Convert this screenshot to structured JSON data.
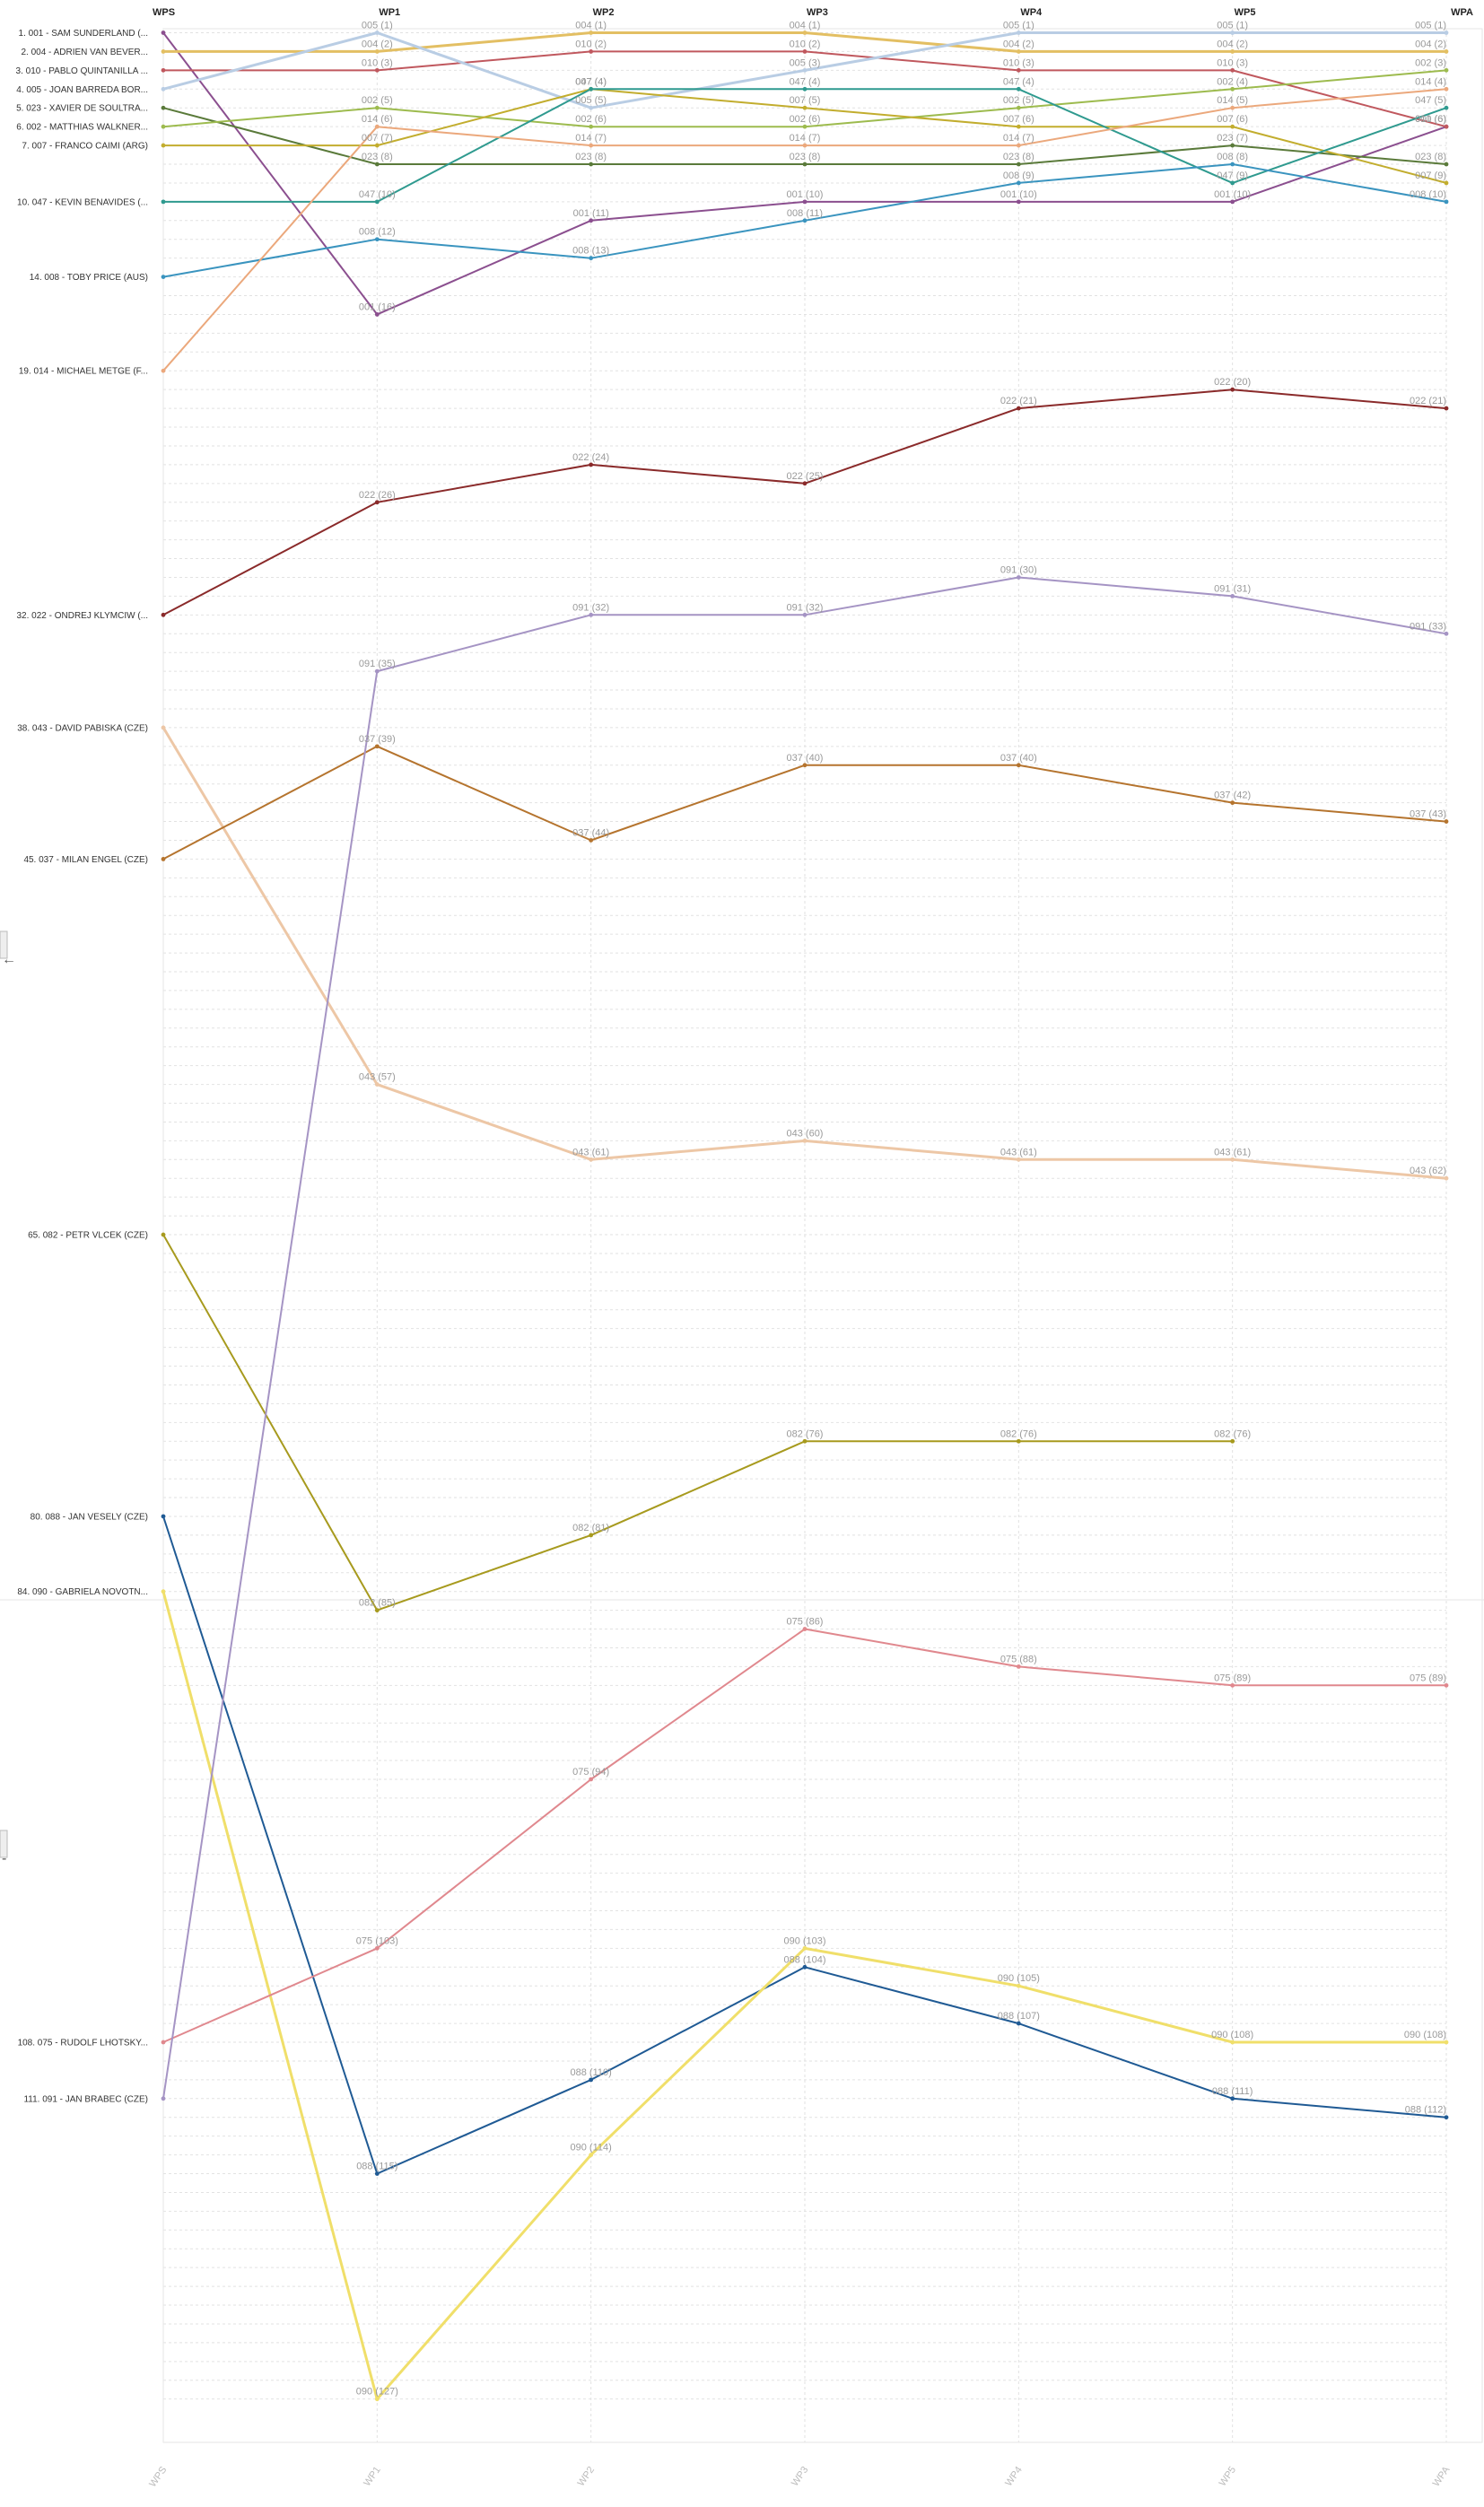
{
  "chart_data": {
    "type": "line",
    "x": [
      "WPS",
      "WP1",
      "WP2",
      "WP3",
      "WP4",
      "WP5",
      "WPA"
    ],
    "y_axis": {
      "reversed": true,
      "min_rank": 0,
      "max_rank": 127,
      "unit": "position"
    },
    "grid": true,
    "legend": "left",
    "series": [
      {
        "name": "1. 001 - SAM SUNDERLAND (...",
        "code": "001",
        "color": "#8b4f8f",
        "width": 2,
        "ranks": [
          1,
          16,
          11,
          10,
          10,
          10,
          6
        ]
      },
      {
        "name": "2. 004 - ADRIEN VAN BEVER...",
        "code": "004",
        "color": "#e3bf63",
        "width": 3,
        "ranks": [
          2,
          2,
          1,
          1,
          2,
          2,
          2
        ]
      },
      {
        "name": "3. 010 - PABLO QUINTANILLA ...",
        "code": "010",
        "color": "#c0585e",
        "width": 2,
        "ranks": [
          3,
          3,
          2,
          2,
          3,
          3,
          6
        ]
      },
      {
        "name": "4. 005 - JOAN BARREDA BOR...",
        "code": "005",
        "color": "#b9cde4",
        "width": 3,
        "ranks": [
          4,
          1,
          5,
          3,
          1,
          1,
          1
        ]
      },
      {
        "name": "5. 023 - XAVIER DE SOULTRA...",
        "code": "023",
        "color": "#5a7a3a",
        "width": 2,
        "ranks": [
          5,
          8,
          8,
          8,
          8,
          7,
          8
        ]
      },
      {
        "name": "6. 002 - MATTHIAS WALKNER...",
        "code": "002",
        "color": "#9dbb4e",
        "width": 2,
        "ranks": [
          6,
          5,
          6,
          6,
          5,
          4,
          3
        ]
      },
      {
        "name": "7. 007 - FRANCO CAIMI (ARG)",
        "code": "007",
        "color": "#c2ad2e",
        "width": 2,
        "ranks": [
          7,
          7,
          4,
          5,
          6,
          6,
          9
        ]
      },
      {
        "name": "10. 047 - KEVIN BENAVIDES (...",
        "code": "047",
        "color": "#2f9a8f",
        "width": 2,
        "ranks": [
          10,
          10,
          4,
          4,
          4,
          9,
          5
        ]
      },
      {
        "name": "14. 008 - TOBY PRICE (AUS)",
        "code": "008",
        "color": "#3a94bf",
        "width": 2,
        "ranks": [
          14,
          12,
          13,
          11,
          9,
          8,
          10
        ]
      },
      {
        "name": "19. 014 - MICHAEL METGE (F...",
        "code": "014",
        "color": "#eba87c",
        "width": 2,
        "ranks": [
          19,
          6,
          7,
          7,
          7,
          5,
          4
        ]
      },
      {
        "name": "32. 022 - ONDREJ KLYMCIW (...",
        "code": "022",
        "color": "#8a2a2a",
        "width": 2,
        "ranks": [
          32,
          26,
          24,
          25,
          21,
          20,
          21
        ]
      },
      {
        "name": "38. 043 - DAVID PABISKA (CZE)",
        "code": "043",
        "color": "#edc7a6",
        "width": 3,
        "ranks": [
          38,
          57,
          61,
          60,
          61,
          61,
          62
        ]
      },
      {
        "name": "45. 037 - MILAN ENGEL (CZE)",
        "code": "037",
        "color": "#b5742e",
        "width": 2,
        "ranks": [
          45,
          39,
          44,
          40,
          40,
          42,
          43
        ]
      },
      {
        "name": "65. 082 - PETR VLCEK (CZE)",
        "code": "082",
        "color": "#a79a1e",
        "width": 2,
        "ranks": [
          65,
          85,
          81,
          76,
          76,
          76,
          null
        ]
      },
      {
        "name": "80. 088 - JAN VESELY (CZE)",
        "code": "088",
        "color": "#1f5a94",
        "width": 2,
        "ranks": [
          80,
          115,
          110,
          104,
          107,
          111,
          112
        ]
      },
      {
        "name": "84. 090 - GABRIELA NOVOTN...",
        "code": "090",
        "color": "#f0df6a",
        "width": 3,
        "ranks": [
          84,
          127,
          114,
          103,
          105,
          108,
          108
        ]
      },
      {
        "name": "108. 075 - RUDOLF LHOTSKY...",
        "code": "075",
        "color": "#e0888e",
        "width": 2,
        "ranks": [
          108,
          103,
          94,
          86,
          88,
          89,
          89
        ]
      },
      {
        "name": "111. 091 - JAN BRABEC (CZE)",
        "code": "091",
        "color": "#a594c4",
        "width": 2,
        "ranks": [
          111,
          35,
          32,
          32,
          30,
          31,
          33
        ]
      }
    ]
  },
  "side_controls": [
    {
      "icon": "left-arrow-icon",
      "glyph": "←"
    },
    {
      "icon": "dash-icon",
      "glyph": "-"
    }
  ]
}
